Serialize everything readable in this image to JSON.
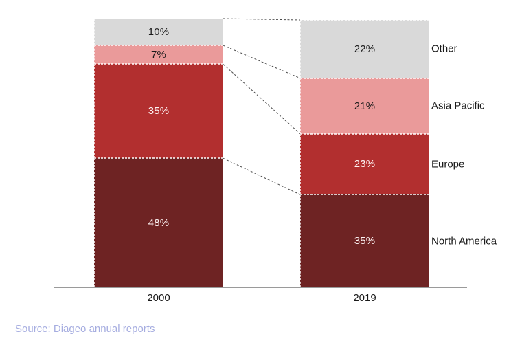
{
  "chart_data": {
    "type": "bar",
    "variant": "stacked-percentage-comparison",
    "title": "",
    "categories": [
      "2000",
      "2019"
    ],
    "series_top_to_bottom": [
      {
        "name": "Other",
        "color": "#d9d9d9",
        "label_color": "#1a1a1a",
        "values": [
          10,
          22
        ]
      },
      {
        "name": "Asia Pacific",
        "color": "#ea9a9a",
        "label_color": "#1a1a1a",
        "values": [
          7,
          21
        ]
      },
      {
        "name": "Europe",
        "color": "#b22f2f",
        "label_color": "#fdf3f3",
        "values": [
          35,
          23
        ]
      },
      {
        "name": "North America",
        "color": "#6e2323",
        "label_color": "#fdf3f3",
        "values": [
          48,
          35
        ]
      }
    ],
    "value_suffix": "%",
    "legend_position": "right",
    "grid": false,
    "connectors": "dashed lines join segment boundaries between the two stacked bars",
    "source_note": "Source: Diageo annual reports"
  },
  "colors": {
    "axis": "#9a9a9a",
    "connector": "#4a4a4a",
    "source_text": "#a6ade0",
    "tick_label": "#1a1a1a"
  }
}
